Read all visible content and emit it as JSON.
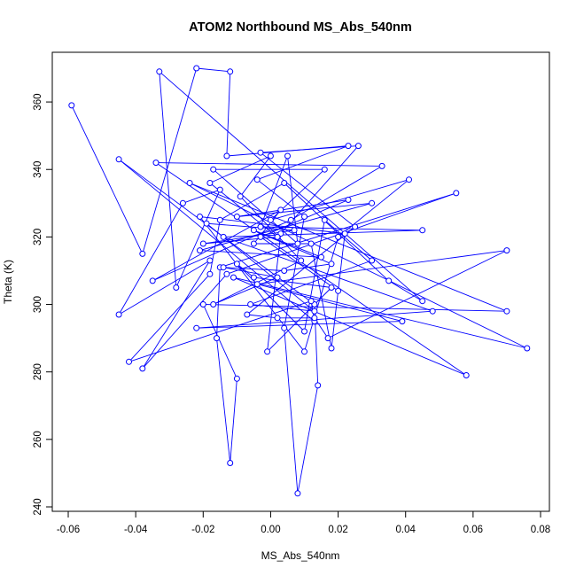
{
  "chart_data": {
    "type": "line",
    "title": "ATOM2 Northbound MS_Abs_540nm",
    "xlabel": "MS_Abs_540nm",
    "ylabel": "Theta (K)",
    "xlim": [
      -0.06,
      0.08
    ],
    "ylim": [
      240,
      370
    ],
    "xticks": [
      -0.06,
      -0.04,
      -0.02,
      0.0,
      0.02,
      0.04,
      0.06,
      0.08
    ],
    "xtick_labels": [
      "-0.06",
      "-0.04",
      "-0.02",
      "0.00",
      "0.02",
      "0.04",
      "0.06",
      "0.08"
    ],
    "yticks": [
      240,
      260,
      280,
      300,
      320,
      340,
      360
    ],
    "ytick_labels": [
      "240",
      "260",
      "280",
      "300",
      "320",
      "340",
      "360"
    ],
    "grid": false,
    "line_color": "#0000ff",
    "marker": "open-circle",
    "series": [
      {
        "points": [
          [
            -0.059,
            359
          ],
          [
            -0.038,
            315
          ],
          [
            -0.022,
            370
          ],
          [
            -0.012,
            369
          ],
          [
            -0.013,
            344
          ],
          [
            0.023,
            347
          ],
          [
            -0.004,
            337
          ],
          [
            0.01,
            326
          ],
          [
            0.004,
            293
          ],
          [
            0.008,
            244
          ],
          [
            0.014,
            276
          ],
          [
            0.013,
            300
          ],
          [
            -0.045,
            343
          ],
          [
            0.013,
            295
          ],
          [
            0.012,
            301
          ],
          [
            -0.042,
            283
          ],
          [
            -0.018,
            309
          ],
          [
            -0.015,
            325
          ],
          [
            0.004,
            336
          ],
          [
            0.035,
            307
          ],
          [
            0.045,
            301
          ],
          [
            -0.033,
            369
          ],
          [
            -0.028,
            305
          ],
          [
            -0.015,
            334
          ],
          [
            -0.026,
            330
          ],
          [
            -0.045,
            297
          ],
          [
            -0.018,
            313
          ],
          [
            -0.038,
            281
          ],
          [
            -0.013,
            309
          ],
          [
            0.055,
            333
          ],
          [
            -0.015,
            311
          ],
          [
            -0.016,
            290
          ],
          [
            -0.012,
            253
          ],
          [
            -0.01,
            278
          ],
          [
            -0.02,
            300
          ],
          [
            0.07,
            298
          ],
          [
            -0.024,
            336
          ],
          [
            0.076,
            287
          ],
          [
            -0.011,
            308
          ],
          [
            0.058,
            279
          ],
          [
            -0.034,
            342
          ],
          [
            0.033,
            341
          ],
          [
            0.006,
            325
          ],
          [
            -0.035,
            307
          ],
          [
            0.003,
            328
          ],
          [
            -0.005,
            318
          ],
          [
            0.012,
            318
          ],
          [
            0.018,
            287
          ],
          [
            0.022,
            321
          ],
          [
            -0.021,
            326
          ],
          [
            0.01,
            286
          ],
          [
            0.02,
            320
          ],
          [
            0.041,
            337
          ],
          [
            0.0,
            325
          ],
          [
            0.016,
            340
          ],
          [
            -0.017,
            340
          ],
          [
            0.008,
            318
          ],
          [
            0.005,
            344
          ],
          [
            -0.003,
            323
          ],
          [
            0.045,
            322
          ],
          [
            -0.014,
            320
          ],
          [
            0.048,
            298
          ],
          [
            -0.022,
            293
          ],
          [
            0.039,
            295
          ],
          [
            -0.004,
            306
          ],
          [
            0.07,
            316
          ],
          [
            0.017,
            290
          ],
          [
            0.013,
            296
          ],
          [
            0.002,
            296
          ],
          [
            -0.007,
            297
          ],
          [
            0.025,
            323
          ],
          [
            -0.003,
            345
          ],
          [
            0.026,
            347
          ],
          [
            0.003,
            321
          ],
          [
            -0.001,
            286
          ],
          [
            0.018,
            305
          ],
          [
            -0.005,
            308
          ],
          [
            -0.01,
            312
          ],
          [
            0.01,
            292
          ],
          [
            0.016,
            325
          ],
          [
            0.03,
            313
          ],
          [
            -0.006,
            300
          ],
          [
            0.013,
            298
          ],
          [
            -0.019,
            324
          ],
          [
            0.007,
            322
          ],
          [
            -0.02,
            318
          ],
          [
            0.002,
            320
          ],
          [
            -0.018,
            336
          ],
          [
            0.0,
            344
          ],
          [
            -0.009,
            332
          ],
          [
            0.009,
            313
          ],
          [
            -0.017,
            300
          ],
          [
            0.002,
            308
          ],
          [
            -0.014,
            311
          ],
          [
            0.004,
            310
          ],
          [
            0.018,
            312
          ],
          [
            -0.005,
            322
          ],
          [
            0.015,
            314
          ],
          [
            -0.021,
            316
          ],
          [
            0.03,
            330
          ],
          [
            -0.01,
            326
          ],
          [
            0.023,
            331
          ],
          [
            -0.003,
            320
          ],
          [
            0.02,
            304
          ]
        ]
      }
    ]
  }
}
